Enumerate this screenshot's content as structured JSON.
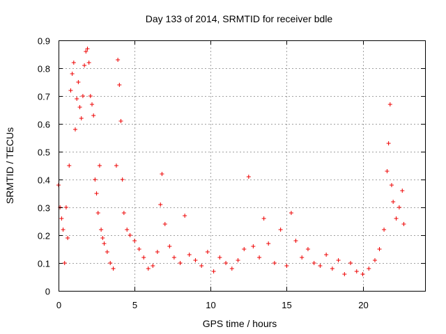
{
  "chart_data": {
    "type": "scatter",
    "title": "Day 133 of 2014, SRMTID for receiver bdle",
    "xlabel": "GPS time / hours",
    "ylabel": "SRMTID / TECUs",
    "xlim": [
      0,
      24.1
    ],
    "ylim": [
      0,
      0.9
    ],
    "xticks": [
      0,
      5,
      10,
      15,
      20
    ],
    "xtick_labels": [
      "0",
      "5",
      "10",
      "15",
      "20"
    ],
    "yticks": [
      0,
      0.1,
      0.2,
      0.3,
      0.4,
      0.5,
      0.6,
      0.7,
      0.8,
      0.9
    ],
    "ytick_labels": [
      "0",
      "0.1",
      "0.2",
      "0.3",
      "0.4",
      "0.5",
      "0.6",
      "0.7",
      "0.8",
      "0.9"
    ],
    "grid": true,
    "marker": "+",
    "color": "#ee0000",
    "series": [
      {
        "name": "SRMTID",
        "x": [
          0.0,
          0.1,
          0.2,
          0.3,
          0.4,
          0.5,
          0.6,
          0.7,
          0.8,
          0.9,
          1.0,
          1.1,
          1.2,
          1.3,
          1.4,
          1.5,
          1.6,
          1.7,
          1.8,
          1.9,
          2.0,
          2.1,
          2.2,
          2.3,
          2.4,
          2.5,
          2.6,
          2.7,
          2.8,
          2.9,
          3.0,
          3.2,
          3.4,
          3.6,
          3.8,
          3.9,
          4.0,
          4.1,
          4.2,
          4.3,
          4.5,
          4.7,
          5.0,
          5.3,
          5.6,
          5.9,
          6.2,
          6.5,
          6.7,
          6.8,
          7.0,
          7.3,
          7.6,
          8.0,
          8.3,
          8.6,
          9.0,
          9.4,
          9.8,
          10.2,
          10.6,
          11.0,
          11.4,
          11.8,
          12.2,
          12.5,
          12.8,
          13.2,
          13.5,
          13.8,
          14.2,
          14.6,
          15.0,
          15.3,
          15.6,
          16.0,
          16.4,
          16.8,
          17.2,
          17.6,
          18.0,
          18.4,
          18.8,
          19.2,
          19.6,
          20.0,
          20.4,
          20.8,
          21.1,
          21.4,
          21.6,
          21.7,
          21.8,
          21.9,
          22.0,
          22.2,
          22.4,
          22.6,
          22.7
        ],
        "y": [
          0.38,
          0.3,
          0.26,
          0.22,
          0.1,
          0.3,
          0.19,
          0.45,
          0.72,
          0.78,
          0.82,
          0.58,
          0.69,
          0.75,
          0.66,
          0.62,
          0.7,
          0.81,
          0.86,
          0.87,
          0.82,
          0.7,
          0.67,
          0.63,
          0.4,
          0.35,
          0.28,
          0.45,
          0.22,
          0.19,
          0.17,
          0.14,
          0.1,
          0.08,
          0.45,
          0.83,
          0.74,
          0.61,
          0.4,
          0.28,
          0.22,
          0.2,
          0.18,
          0.15,
          0.12,
          0.08,
          0.09,
          0.14,
          0.31,
          0.42,
          0.24,
          0.16,
          0.12,
          0.1,
          0.27,
          0.13,
          0.11,
          0.09,
          0.14,
          0.07,
          0.12,
          0.1,
          0.08,
          0.11,
          0.15,
          0.41,
          0.16,
          0.12,
          0.26,
          0.17,
          0.1,
          0.22,
          0.09,
          0.28,
          0.18,
          0.12,
          0.15,
          0.1,
          0.09,
          0.13,
          0.08,
          0.11,
          0.06,
          0.1,
          0.07,
          0.06,
          0.08,
          0.11,
          0.15,
          0.22,
          0.43,
          0.53,
          0.67,
          0.38,
          0.32,
          0.26,
          0.3,
          0.36,
          0.24
        ]
      }
    ]
  }
}
